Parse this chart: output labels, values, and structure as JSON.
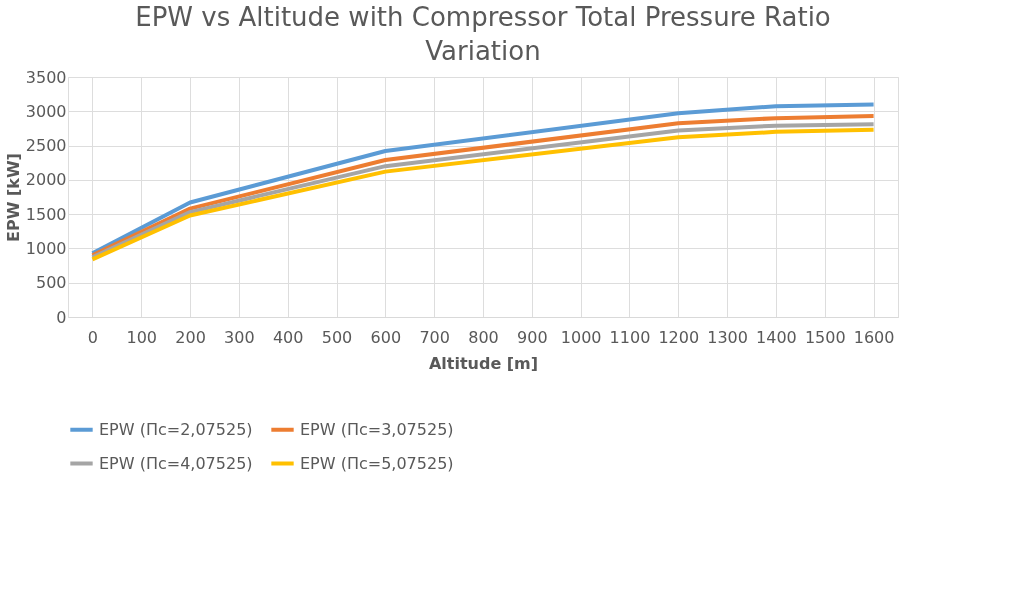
{
  "chart_data": {
    "type": "line",
    "title": "EPW vs Altitude with Compressor Total Pressure Ratio Variation",
    "xlabel": "Altitude [m]",
    "ylabel": "EPW [kW]",
    "categories": [
      "0",
      "100",
      "200",
      "300",
      "400",
      "500",
      "600",
      "700",
      "800",
      "900",
      "1000",
      "1100",
      "1200",
      "1300",
      "1400",
      "1500",
      "1600"
    ],
    "series": [
      {
        "name": "EPW (Пc=2,07525)",
        "color": "#5b9bd5",
        "values": [
          930,
          null,
          1670,
          null,
          null,
          null,
          2420,
          null,
          null,
          null,
          null,
          null,
          2970,
          null,
          3075,
          null,
          3100
        ]
      },
      {
        "name": "EPW (Пc=3,07525)",
        "color": "#ed7d31",
        "values": [
          900,
          null,
          1580,
          null,
          null,
          null,
          2290,
          null,
          null,
          null,
          null,
          null,
          2825,
          null,
          2900,
          null,
          2930
        ]
      },
      {
        "name": "EPW (Пc=4,07525)",
        "color": "#a5a5a5",
        "values": [
          870,
          null,
          1530,
          null,
          null,
          null,
          2200,
          null,
          null,
          null,
          null,
          null,
          2720,
          null,
          2790,
          null,
          2810
        ]
      },
      {
        "name": "EPW (Пc=5,07525)",
        "color": "#ffc000",
        "values": [
          840,
          null,
          1480,
          null,
          null,
          null,
          2120,
          null,
          null,
          null,
          null,
          null,
          2620,
          null,
          2700,
          null,
          2730
        ]
      }
    ],
    "ylim": [
      0,
      3500
    ],
    "yticks": [
      0,
      500,
      1000,
      1500,
      2000,
      2500,
      3000,
      3500
    ],
    "grid": true,
    "legend": "bottom",
    "marker": "none",
    "line_style": "solid"
  }
}
